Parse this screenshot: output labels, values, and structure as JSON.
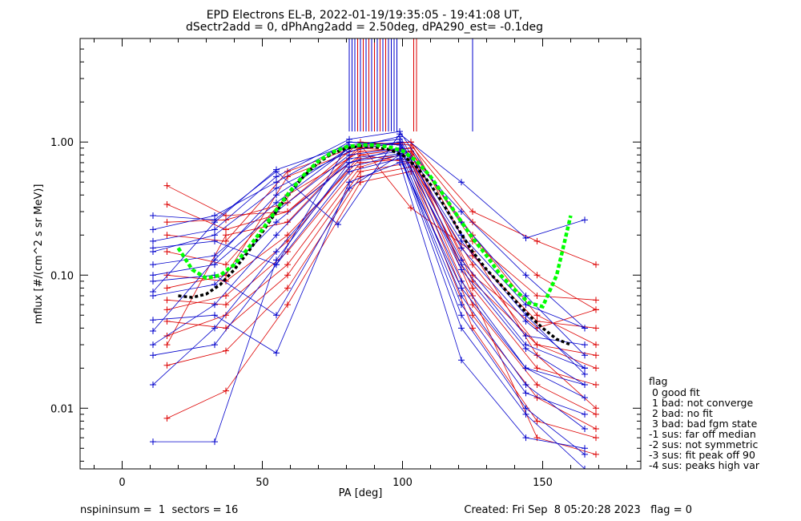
{
  "chart_data": {
    "type": "line",
    "title_lines": [
      "EPD Electrons EL-B, 2022-01-19/19:35:05 - 19:41:08 UT,",
      "dSectr2add = 0, dPhAng2add = 2.50deg, dPA290_est=  -0.1deg"
    ],
    "xlabel": "PA [deg]",
    "ylabel": "mflux [#/(cm^2 s sr MeV)]",
    "xlim": [
      -15,
      185
    ],
    "ylim": [
      0.0035,
      6.0
    ],
    "y_log": true,
    "x_ticks": [
      0,
      50,
      100,
      150
    ],
    "x_tick_labels": [
      "0",
      "50",
      "100",
      "150"
    ],
    "y_ticks": [
      0.01,
      0.1,
      1.0
    ],
    "y_tick_labels": [
      "0.01",
      "0.10",
      "1.00"
    ],
    "colors": {
      "blue": "#0000cc",
      "red": "#dd0000",
      "fit_black": "#000000",
      "fit_green": "#00ff00"
    },
    "blue_series": [
      {
        "x": [
          11,
          33,
          55,
          81,
          99,
          121,
          144,
          165
        ],
        "y": [
          0.075,
          0.25,
          0.62,
          0.95,
          1.05,
          0.16,
          0.045,
          0.02
        ]
      },
      {
        "x": [
          11,
          33,
          55,
          81,
          99,
          121,
          144,
          165
        ],
        "y": [
          0.15,
          0.2,
          0.45,
          0.85,
          1.0,
          0.13,
          0.035,
          0.03
        ]
      },
      {
        "x": [
          11,
          33,
          55,
          81,
          99,
          121,
          144,
          165
        ],
        "y": [
          0.038,
          0.13,
          0.4,
          0.9,
          1.1,
          0.2,
          0.06,
          0.04
        ]
      },
      {
        "x": [
          11,
          33,
          55,
          81,
          99,
          121,
          144,
          165
        ],
        "y": [
          0.22,
          0.28,
          0.5,
          1.0,
          0.95,
          0.11,
          0.028,
          0.015
        ]
      },
      {
        "x": [
          11,
          33,
          55,
          81,
          99,
          121,
          144,
          165
        ],
        "y": [
          0.1,
          0.12,
          0.3,
          0.8,
          0.9,
          0.09,
          0.02,
          0.012
        ]
      },
      {
        "x": [
          11,
          33,
          55,
          81,
          99,
          121,
          144,
          165
        ],
        "y": [
          0.03,
          0.06,
          0.2,
          0.75,
          0.85,
          0.07,
          0.015,
          0.007
        ]
      },
      {
        "x": [
          11,
          33,
          55,
          81,
          99,
          121,
          144,
          165
        ],
        "y": [
          0.0056,
          0.0056,
          0.13,
          0.7,
          0.82,
          0.05,
          0.01,
          0.0045
        ]
      },
      {
        "x": [
          11,
          33,
          55,
          81,
          99,
          121,
          144,
          165
        ],
        "y": [
          0.015,
          0.04,
          0.15,
          0.65,
          0.8,
          0.04,
          0.009,
          0.0035
        ]
      },
      {
        "x": [
          11,
          33,
          55,
          81,
          99,
          121,
          144,
          165
        ],
        "y": [
          0.18,
          0.22,
          0.55,
          1.05,
          1.2,
          0.25,
          0.07,
          0.025
        ]
      },
      {
        "x": [
          11,
          33,
          55,
          81,
          99,
          121,
          144,
          165
        ],
        "y": [
          0.12,
          0.14,
          0.35,
          0.9,
          1.0,
          0.18,
          0.05,
          0.018
        ]
      },
      {
        "x": [
          11,
          33,
          55,
          77,
          99,
          121,
          144,
          165
        ],
        "y": [
          0.28,
          0.26,
          0.6,
          0.24,
          1.15,
          0.5,
          0.19,
          0.26
        ]
      },
      {
        "x": [
          11,
          33,
          55,
          81,
          99,
          121,
          144,
          165
        ],
        "y": [
          0.07,
          0.085,
          0.25,
          0.7,
          0.9,
          0.12,
          0.03,
          0.02
        ]
      },
      {
        "x": [
          11,
          33,
          55,
          81,
          99,
          121,
          144,
          165
        ],
        "y": [
          0.025,
          0.03,
          0.12,
          0.6,
          0.75,
          0.08,
          0.02,
          0.015
        ]
      },
      {
        "x": [
          11,
          33,
          55,
          81,
          99,
          121,
          144,
          165
        ],
        "y": [
          0.046,
          0.05,
          0.026,
          0.5,
          0.7,
          0.023,
          0.006,
          0.005
        ]
      },
      {
        "x": [
          11,
          33,
          55,
          81,
          99,
          121,
          144,
          165
        ],
        "y": [
          0.09,
          0.1,
          0.05,
          0.45,
          0.8,
          0.06,
          0.013,
          0.009
        ]
      },
      {
        "x": [
          11,
          33,
          55,
          81,
          99,
          121,
          144,
          165
        ],
        "y": [
          0.16,
          0.18,
          0.12,
          1.0,
          0.95,
          0.3,
          0.1,
          0.04
        ]
      }
    ],
    "red_series": [
      {
        "x": [
          16,
          37,
          59,
          85,
          103,
          125,
          148,
          169
        ],
        "y": [
          0.47,
          0.28,
          0.3,
          0.8,
          0.7,
          0.12,
          0.03,
          0.02
        ]
      },
      {
        "x": [
          16,
          37,
          59,
          85,
          103,
          125,
          148,
          169
        ],
        "y": [
          0.34,
          0.22,
          0.3,
          0.9,
          0.85,
          0.2,
          0.05,
          0.03
        ]
      },
      {
        "x": [
          16,
          37,
          59,
          85,
          103,
          125,
          148,
          169
        ],
        "y": [
          0.2,
          0.18,
          0.6,
          0.95,
          1.0,
          0.3,
          0.18,
          0.12
        ]
      },
      {
        "x": [
          16,
          37,
          59,
          85,
          103,
          125,
          148,
          169
        ],
        "y": [
          0.15,
          0.12,
          0.4,
          0.85,
          0.9,
          0.18,
          0.07,
          0.065
        ]
      },
      {
        "x": [
          16,
          37,
          59,
          85,
          103,
          125,
          148,
          169
        ],
        "y": [
          0.1,
          0.09,
          0.2,
          0.75,
          0.8,
          0.1,
          0.04,
          0.055
        ]
      },
      {
        "x": [
          16,
          37,
          59,
          85,
          103,
          125,
          148,
          169
        ],
        "y": [
          0.065,
          0.06,
          0.15,
          0.7,
          0.75,
          0.08,
          0.02,
          0.015
        ]
      },
      {
        "x": [
          16,
          37,
          59,
          85,
          103,
          125,
          148,
          169
        ],
        "y": [
          0.045,
          0.04,
          0.1,
          0.6,
          0.7,
          0.06,
          0.015,
          0.009
        ]
      },
      {
        "x": [
          16,
          37,
          59,
          85,
          103,
          125,
          148,
          169
        ],
        "y": [
          0.021,
          0.027,
          0.08,
          0.55,
          0.65,
          0.05,
          0.012,
          0.007
        ]
      },
      {
        "x": [
          16,
          37,
          59,
          85,
          103,
          125,
          148,
          169
        ],
        "y": [
          0.0084,
          0.0135,
          0.06,
          0.5,
          0.6,
          0.04,
          0.008,
          0.006
        ]
      },
      {
        "x": [
          16,
          37,
          59,
          85,
          103,
          125,
          148,
          169
        ],
        "y": [
          0.03,
          0.2,
          0.25,
          0.95,
          0.32,
          0.15,
          0.025,
          0.01
        ]
      },
      {
        "x": [
          16,
          37,
          59,
          85,
          103,
          125,
          148,
          169
        ],
        "y": [
          0.055,
          0.07,
          0.18,
          0.8,
          0.9,
          0.09,
          0.03,
          0.025
        ]
      },
      {
        "x": [
          16,
          37,
          59,
          85,
          103,
          125,
          148,
          169
        ],
        "y": [
          0.25,
          0.26,
          0.35,
          1.0,
          0.95,
          0.25,
          0.1,
          0.055
        ]
      },
      {
        "x": [
          16,
          37,
          59,
          85,
          103,
          125,
          148,
          169
        ],
        "y": [
          0.08,
          0.1,
          0.55,
          0.9,
          1.0,
          0.14,
          0.045,
          0.04
        ]
      },
      {
        "x": [
          16,
          37,
          59,
          85,
          103,
          125,
          148,
          169
        ],
        "y": [
          0.035,
          0.05,
          0.12,
          0.65,
          0.85,
          0.07,
          0.006,
          0.0045
        ]
      }
    ],
    "fit_black": {
      "x": [
        20,
        25,
        30,
        35,
        40,
        45,
        50,
        55,
        60,
        65,
        70,
        75,
        80,
        85,
        90,
        95,
        100,
        105,
        110,
        115,
        120,
        125,
        130,
        135,
        140,
        145,
        150,
        155,
        160
      ],
      "y": [
        0.07,
        0.068,
        0.072,
        0.085,
        0.11,
        0.15,
        0.21,
        0.3,
        0.42,
        0.56,
        0.7,
        0.82,
        0.9,
        0.93,
        0.92,
        0.88,
        0.8,
        0.65,
        0.48,
        0.33,
        0.22,
        0.15,
        0.11,
        0.085,
        0.065,
        0.05,
        0.04,
        0.033,
        0.03
      ]
    },
    "fit_green": {
      "x": [
        20,
        25,
        30,
        35,
        40,
        45,
        50,
        55,
        60,
        65,
        70,
        75,
        80,
        85,
        90,
        95,
        100,
        105,
        110,
        115,
        120,
        125,
        130,
        135,
        140,
        145,
        150,
        155,
        160
      ],
      "y": [
        0.16,
        0.11,
        0.095,
        0.1,
        0.12,
        0.16,
        0.22,
        0.31,
        0.43,
        0.57,
        0.72,
        0.84,
        0.92,
        0.95,
        0.95,
        0.92,
        0.86,
        0.72,
        0.55,
        0.39,
        0.27,
        0.19,
        0.14,
        0.1,
        0.078,
        0.062,
        0.058,
        0.1,
        0.28
      ]
    },
    "blue_verticals": [
      81,
      82,
      83,
      85,
      86,
      87,
      88,
      89,
      90,
      91,
      92,
      93,
      94,
      95,
      96,
      97,
      98,
      125
    ],
    "red_verticals": [
      84,
      86,
      88,
      90,
      92,
      94,
      104,
      105
    ],
    "vertical_bottom_value": 1.2,
    "legend": {
      "header": "flag",
      "items": [
        " 0 good fit",
        " 1 bad: not converge",
        " 2 bad: no fit",
        " 3 bad: bad fgm state",
        "-1 sus: far off median",
        "-2 sus: not symmetric",
        "-3 sus: fit peak off 90",
        "-4 sus: peaks high var"
      ]
    },
    "footer": {
      "left": "nspininsum =  1  sectors = 16",
      "right": "Created: Fri Sep  8 05:20:28 2023   flag = 0"
    }
  }
}
